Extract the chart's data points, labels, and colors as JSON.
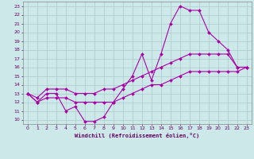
{
  "xlabel": "Windchill (Refroidissement éolien,°C)",
  "xlim": [
    -0.5,
    23.5
  ],
  "ylim": [
    9.5,
    23.5
  ],
  "yticks": [
    10,
    11,
    12,
    13,
    14,
    15,
    16,
    17,
    18,
    19,
    20,
    21,
    22,
    23
  ],
  "xticks": [
    0,
    1,
    2,
    3,
    4,
    5,
    6,
    7,
    8,
    9,
    10,
    11,
    12,
    13,
    14,
    15,
    16,
    17,
    18,
    19,
    20,
    21,
    22,
    23
  ],
  "bg_color": "#cce8e8",
  "line_color": "#aa00aa",
  "grid_color": "#aacccc",
  "line1_x": [
    0,
    1,
    2,
    3,
    4,
    5,
    6,
    7,
    8,
    9,
    10,
    11,
    12,
    13,
    14,
    15,
    16,
    17,
    18,
    19,
    20,
    21,
    22,
    23
  ],
  "line1_y": [
    13,
    12,
    13,
    13,
    11,
    11.5,
    9.8,
    9.8,
    10.3,
    12,
    13.5,
    15,
    17.5,
    14.5,
    17.5,
    21,
    23,
    22.5,
    22.5,
    20,
    19,
    18,
    16,
    16
  ],
  "line2_x": [
    0,
    1,
    2,
    3,
    4,
    5,
    6,
    7,
    8,
    9,
    10,
    11,
    12,
    13,
    14,
    15,
    16,
    17,
    18,
    19,
    20,
    21,
    22,
    23
  ],
  "line2_y": [
    13,
    12.5,
    13.5,
    13.5,
    13.5,
    13,
    13,
    13,
    13.5,
    13.5,
    14,
    14.5,
    15,
    15.5,
    16,
    16.5,
    17,
    17.5,
    17.5,
    17.5,
    17.5,
    17.5,
    16,
    16
  ],
  "line3_x": [
    0,
    1,
    2,
    3,
    4,
    5,
    6,
    7,
    8,
    9,
    10,
    11,
    12,
    13,
    14,
    15,
    16,
    17,
    18,
    19,
    20,
    21,
    22,
    23
  ],
  "line3_y": [
    13,
    12,
    12.5,
    12.5,
    12.5,
    12,
    12,
    12,
    12,
    12,
    12.5,
    13,
    13.5,
    14,
    14,
    14.5,
    15,
    15.5,
    15.5,
    15.5,
    15.5,
    15.5,
    15.5,
    16
  ]
}
